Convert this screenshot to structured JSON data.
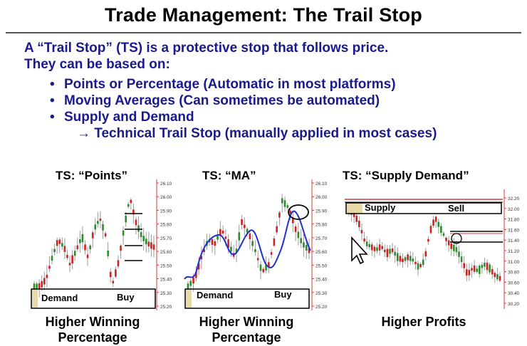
{
  "title": "Trade Management: The Trail Stop",
  "intro": {
    "line1": "A “Trail Stop” (TS) is a protective stop that follows price.",
    "line2": "They can be based on:"
  },
  "bullets": [
    {
      "marker": "•",
      "text": "Points or Percentage (Automatic in most platforms)"
    },
    {
      "marker": "•",
      "text": "Moving Averages (Can sometimes be automated)"
    },
    {
      "marker": "•",
      "text": "Supply and Demand"
    }
  ],
  "sub_bullet": {
    "marker": "→",
    "text": "Technical Trail Stop (manually applied in most cases)"
  },
  "panels": [
    {
      "title": "TS: “Points”",
      "caption_line1": "Higher Winning",
      "caption_line2": "Percentage",
      "zone_label": "Demand",
      "buy_label": "Buy",
      "axis_ticks": [
        "26.10",
        "26.00",
        "25.90",
        "25.80",
        "25.70",
        "25.60",
        "25.50",
        "25.40",
        "25.30",
        "25.20"
      ]
    },
    {
      "title": "TS: “MA”",
      "caption_line1": "Higher Winning",
      "caption_line2": "Percentage",
      "zone_label": "Demand",
      "buy_label": "Buy",
      "axis_ticks": [
        "26.10",
        "26.00",
        "25.90",
        "25.80",
        "25.70",
        "25.60",
        "25.50",
        "25.40",
        "25.30",
        "25.20"
      ]
    },
    {
      "title": "TS: “Supply Demand”",
      "caption": "Higher Profits",
      "zone_label": "Supply",
      "sell_label": "Sell",
      "axis_ticks": [
        "32.20",
        "32.00",
        "31.80",
        "31.60",
        "31.40",
        "31.20",
        "31.00",
        "30.80",
        "30.60",
        "30.40",
        "30.20"
      ]
    }
  ],
  "colors": {
    "title": "#000000",
    "body_text": "#1a1a8c",
    "up_candle": "#2e8b2e",
    "down_candle": "#cc2222",
    "ma_line": "#1f2fd0",
    "zone_fill": "#e8d9a8",
    "axis_red": "#d43b3b"
  }
}
